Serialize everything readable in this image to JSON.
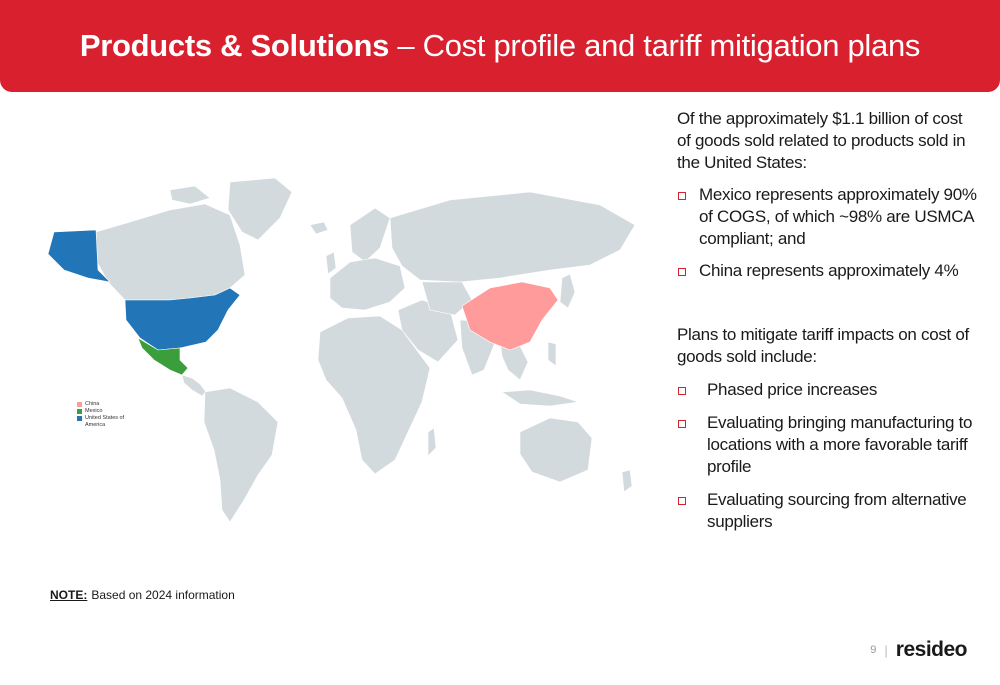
{
  "header": {
    "title_bold": "Products & Solutions",
    "title_rest": " – Cost profile and tariff mitigation plans"
  },
  "map": {
    "highlight_colors": {
      "china": "#ff9b9b",
      "mexico": "#3a9e3a",
      "usa": "#2276b8",
      "land": "#d3dade"
    },
    "legend": [
      {
        "label": "China",
        "color": "#ff9b9b"
      },
      {
        "label": "Mexico",
        "color": "#3a9e3a"
      },
      {
        "label": "United States of America",
        "color": "#2276b8"
      }
    ]
  },
  "note": {
    "label": "NOTE:",
    "text": "Based on 2024 information"
  },
  "right": {
    "intro": "Of the approximately $1.1 billion of cost of goods sold related to products sold in the United States:",
    "bullets1": [
      "Mexico represents approximately 90% of COGS, of which ~98% are USMCA compliant; and",
      "China represents approximately 4%"
    ],
    "plans_intro": "Plans to mitigate tariff impacts on cost of goods sold include:",
    "bullets2": [
      "Phased price increases",
      "Evaluating bringing manufacturing to locations with a more favorable tariff profile",
      "Evaluating sourcing from alternative suppliers"
    ]
  },
  "footer": {
    "page_number": "9",
    "separator": "|",
    "logo": "resideo"
  }
}
